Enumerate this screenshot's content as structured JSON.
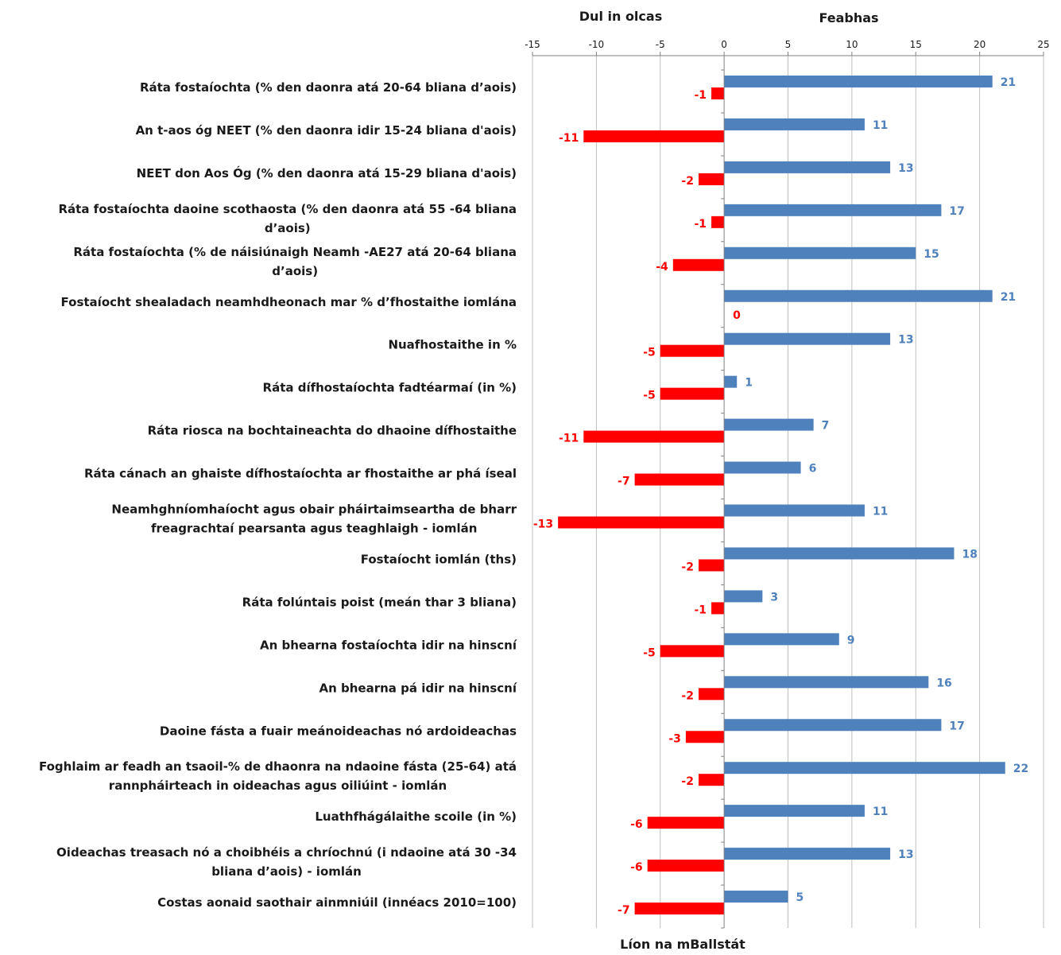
{
  "chart_data": {
    "type": "bar",
    "orientation": "horizontal",
    "categories": [
      [
        "Ráta fostaíochta (% den daonra atá 20-64 bliana d’aois)"
      ],
      [
        "An t-aos óg NEET (% den daonra idir 15-24 bliana d'aois)"
      ],
      [
        "NEET don Aos Óg (% den daonra atá 15-29 bliana d'aois)"
      ],
      [
        "Ráta fostaíochta daoine scothaosta (% den daonra atá 55 -64 bliana",
        "d’aois)"
      ],
      [
        "Ráta fostaíochta (% de náisiúnaigh Neamh -AE27 atá 20-64 bliana",
        "d’aois)"
      ],
      [
        "Fostaíocht shealadach neamhdheonach mar % d’fhostaithe iomlána"
      ],
      [
        "Nuafhostaithe in %"
      ],
      [
        "Ráta dífhostaíochta fadtéarmaí (in %)"
      ],
      [
        "Ráta riosca na bochtaineachta do dhaoine dífhostaithe"
      ],
      [
        "Ráta cánach an ghaiste dífhostaíochta ar fhostaithe ar phá íseal"
      ],
      [
        "Neamhghníomhaíocht agus obair pháirtaimseartha de bharr",
        "freagrachtaí pearsanta agus teaghlaigh - iomlán"
      ],
      [
        "Fostaíocht iomlán (ths)"
      ],
      [
        "Ráta folúntais poist (meán thar 3 bliana)"
      ],
      [
        "An bhearna fostaíochta idir na hinscní"
      ],
      [
        "An bhearna pá idir na hinscní"
      ],
      [
        "Daoine fásta a fuair meánoideachas nó ardoideachas"
      ],
      [
        "Foghlaim ar feadh an tsaoil-% de dhaonra na ndaoine fásta (25-64) atá",
        "rannpháirteach in oideachas agus oiliúint - iomlán"
      ],
      [
        "Luathfhágálaithe scoile (in %)"
      ],
      [
        "Oideachas treasach nó a choibhéis a chríochnú (i ndaoine atá 30 -34",
        "bliana d’aois) - iomlán"
      ],
      [
        "Costas aonaid saothair ainmniúil (innéacs 2010=100)"
      ]
    ],
    "series": [
      {
        "values": [
          21,
          11,
          13,
          17,
          15,
          21,
          13,
          1,
          7,
          6,
          11,
          18,
          3,
          9,
          16,
          17,
          22,
          11,
          13,
          5
        ],
        "color": "#4f81bd"
      },
      {
        "values": [
          -1,
          -11,
          -2,
          -1,
          -4,
          0,
          -5,
          -5,
          -11,
          -7,
          -13,
          -2,
          -1,
          -5,
          -2,
          -3,
          -2,
          -6,
          -6,
          -7
        ],
        "color": "#ff0000"
      }
    ],
    "header_left": "Dul in olcas",
    "header_right": "Feabhas",
    "xlabel": "Líon na mBallstát",
    "xlim": [
      -15,
      25
    ],
    "xticks": [
      -15,
      -10,
      -5,
      0,
      5,
      10,
      15,
      20,
      25
    ],
    "axis_position": "top",
    "grid": true,
    "legend": "none"
  }
}
